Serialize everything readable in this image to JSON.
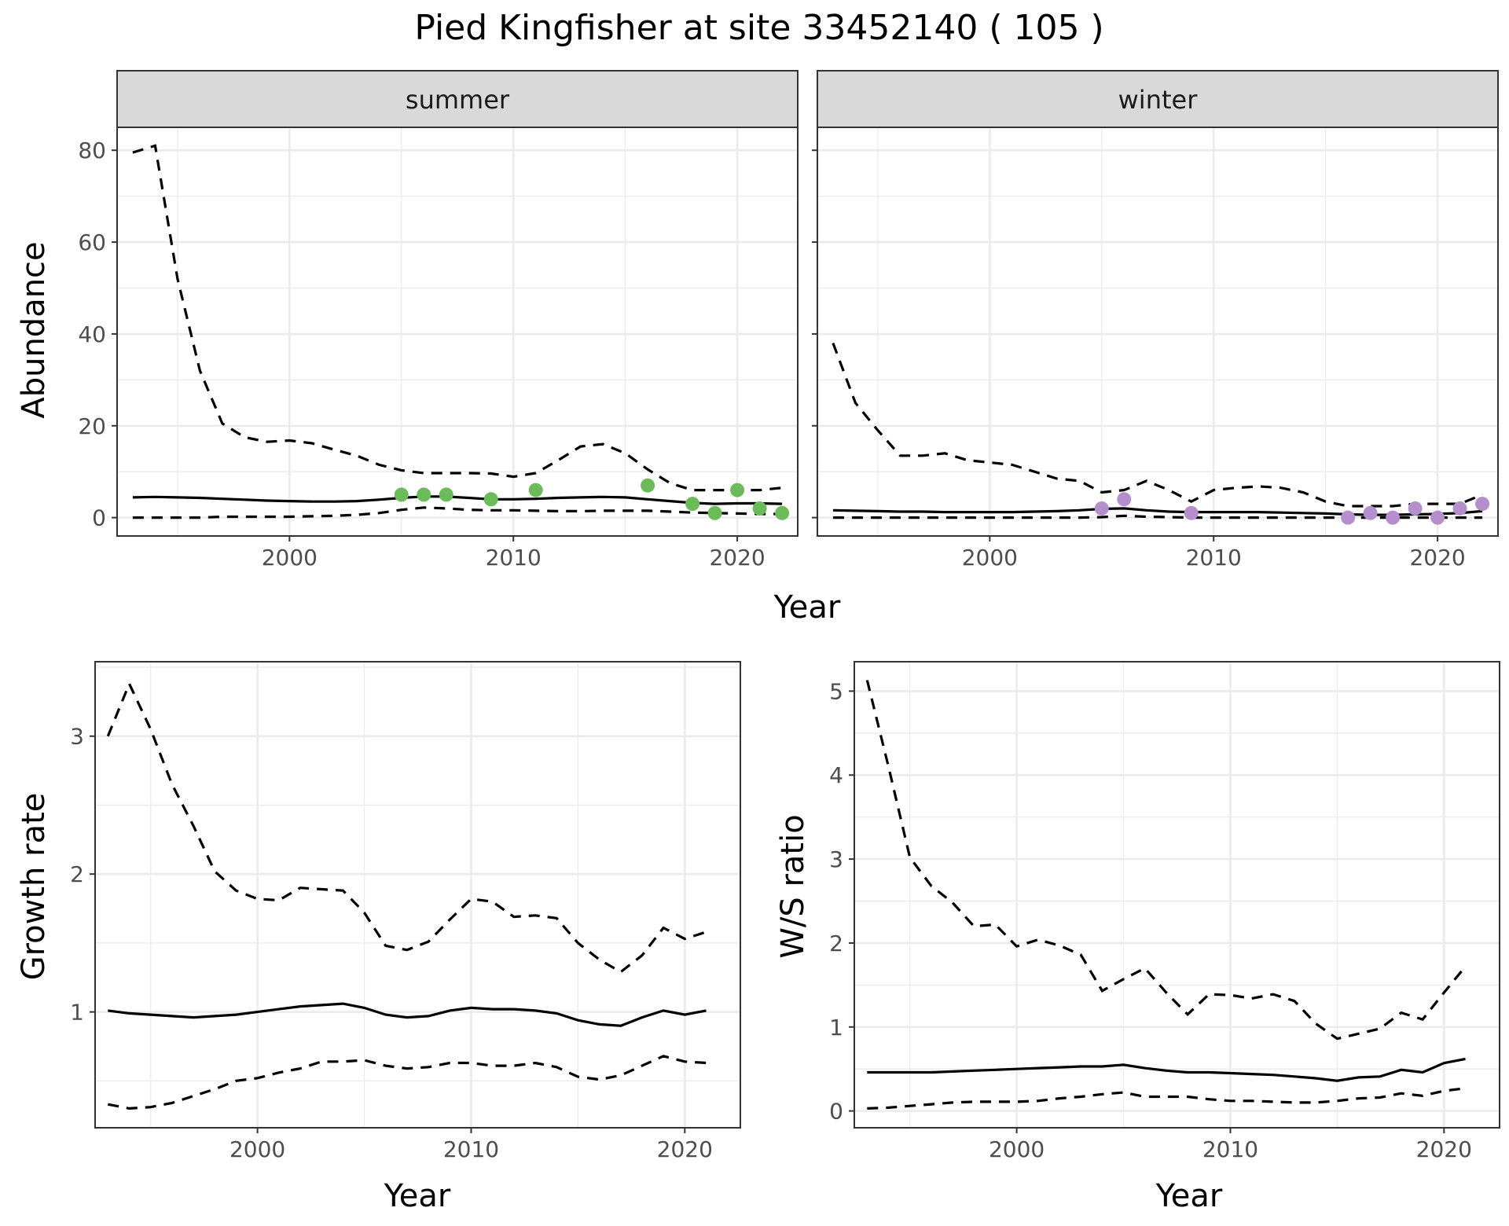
{
  "title": "Pied Kingfisher at site 33452140 ( 105 )",
  "colors": {
    "summer_points": "#6cbb5a",
    "winter_points": "#b48fcb"
  },
  "chart_data": [
    {
      "type": "line",
      "panel": "summer",
      "strip_label": "summer",
      "xlabel": "Year",
      "ylabel": "Abundance",
      "xlim": [
        1992.3,
        2022.7
      ],
      "ylim": [
        -4,
        85
      ],
      "x_ticks": [
        2000,
        2010,
        2020
      ],
      "y_ticks": [
        0,
        20,
        40,
        60,
        80
      ],
      "series": [
        {
          "role": "mean",
          "style": "solid",
          "x": [
            1993,
            1994,
            1995,
            1996,
            1997,
            1998,
            1999,
            2000,
            2001,
            2002,
            2003,
            2004,
            2005,
            2006,
            2007,
            2008,
            2009,
            2010,
            2011,
            2012,
            2013,
            2014,
            2015,
            2016,
            2017,
            2018,
            2019,
            2020,
            2021,
            2022
          ],
          "y": [
            4.4,
            4.5,
            4.4,
            4.3,
            4.1,
            3.9,
            3.7,
            3.6,
            3.5,
            3.5,
            3.6,
            3.9,
            4.3,
            4.6,
            4.6,
            4.3,
            4.0,
            4.0,
            4.1,
            4.3,
            4.4,
            4.5,
            4.4,
            4.0,
            3.6,
            3.2,
            3.0,
            3.1,
            3.1,
            3.0
          ]
        },
        {
          "role": "upper",
          "style": "dashed",
          "x": [
            1993,
            1994,
            1995,
            1996,
            1997,
            1998,
            1999,
            2000,
            2001,
            2002,
            2003,
            2004,
            2005,
            2006,
            2007,
            2008,
            2009,
            2010,
            2011,
            2012,
            2013,
            2014,
            2015,
            2016,
            2017,
            2018,
            2019,
            2020,
            2021,
            2022
          ],
          "y": [
            79.5,
            81,
            52,
            32,
            20.5,
            17.5,
            16.5,
            16.8,
            16.2,
            14.8,
            13.5,
            11.5,
            10.3,
            9.7,
            9.7,
            9.7,
            9.6,
            8.9,
            9.7,
            12.5,
            15.5,
            16,
            14,
            10.5,
            7.5,
            6,
            6,
            6,
            6,
            6.5
          ]
        },
        {
          "role": "lower",
          "style": "dashed",
          "x": [
            1993,
            1994,
            1995,
            1996,
            1997,
            1998,
            1999,
            2000,
            2001,
            2002,
            2003,
            2004,
            2005,
            2006,
            2007,
            2008,
            2009,
            2010,
            2011,
            2012,
            2013,
            2014,
            2015,
            2016,
            2017,
            2018,
            2019,
            2020,
            2021,
            2022
          ],
          "y": [
            0,
            0,
            0,
            0,
            0.2,
            0.2,
            0.2,
            0.2,
            0.3,
            0.4,
            0.6,
            1.0,
            1.7,
            2.2,
            2.0,
            1.7,
            1.6,
            1.6,
            1.5,
            1.4,
            1.4,
            1.5,
            1.5,
            1.5,
            1.3,
            1.1,
            1.0,
            0.9,
            0.8,
            0.8
          ]
        }
      ],
      "points": {
        "x": [
          2005,
          2006,
          2007,
          2009,
          2011,
          2016,
          2018,
          2019,
          2020,
          2021,
          2022
        ],
        "y": [
          5,
          5,
          5,
          4,
          6,
          7,
          3,
          1,
          6,
          2,
          1
        ]
      }
    },
    {
      "type": "line",
      "panel": "winter",
      "strip_label": "winter",
      "xlabel": "Year",
      "ylabel": "Abundance",
      "xlim": [
        1992.3,
        2022.7
      ],
      "ylim": [
        -4,
        85
      ],
      "x_ticks": [
        2000,
        2010,
        2020
      ],
      "y_ticks": [
        0,
        20,
        40,
        60,
        80
      ],
      "series": [
        {
          "role": "mean",
          "style": "solid",
          "x": [
            1993,
            1994,
            1995,
            1996,
            1997,
            1998,
            1999,
            2000,
            2001,
            2002,
            2003,
            2004,
            2005,
            2006,
            2007,
            2008,
            2009,
            2010,
            2011,
            2012,
            2013,
            2014,
            2015,
            2016,
            2017,
            2018,
            2019,
            2020,
            2021,
            2022
          ],
          "y": [
            1.6,
            1.5,
            1.4,
            1.3,
            1.3,
            1.2,
            1.2,
            1.2,
            1.2,
            1.3,
            1.4,
            1.6,
            1.9,
            2.0,
            1.6,
            1.3,
            1.2,
            1.2,
            1.2,
            1.2,
            1.1,
            1.0,
            0.9,
            0.7,
            0.6,
            0.6,
            0.7,
            0.8,
            1.0,
            1.4
          ]
        },
        {
          "role": "upper",
          "style": "dashed",
          "x": [
            1993,
            1994,
            1995,
            1996,
            1997,
            1998,
            1999,
            2000,
            2001,
            2002,
            2003,
            2004,
            2005,
            2006,
            2007,
            2008,
            2009,
            2010,
            2011,
            2012,
            2013,
            2014,
            2015,
            2016,
            2017,
            2018,
            2019,
            2020,
            2021,
            2022
          ],
          "y": [
            38,
            25,
            19,
            13.5,
            13.5,
            14,
            12.5,
            12,
            11.5,
            10,
            8.5,
            8,
            5.5,
            6,
            8,
            6,
            3.5,
            6,
            6.5,
            6.8,
            6.5,
            5.5,
            3.5,
            2.5,
            2.5,
            2.5,
            3,
            3,
            3,
            5
          ]
        },
        {
          "role": "lower",
          "style": "dashed",
          "x": [
            1993,
            1994,
            1995,
            1996,
            1997,
            1998,
            1999,
            2000,
            2001,
            2002,
            2003,
            2004,
            2005,
            2006,
            2007,
            2008,
            2009,
            2010,
            2011,
            2012,
            2013,
            2014,
            2015,
            2016,
            2017,
            2018,
            2019,
            2020,
            2021,
            2022
          ],
          "y": [
            0,
            0,
            0,
            0,
            0,
            0,
            0,
            0,
            0,
            0,
            0,
            0,
            0.1,
            0.4,
            0.2,
            0.1,
            0,
            0,
            0,
            0,
            0,
            0,
            0,
            0,
            0,
            0,
            0,
            0,
            0,
            0
          ]
        }
      ],
      "points": {
        "x": [
          2005,
          2006,
          2009,
          2016,
          2017,
          2018,
          2019,
          2020,
          2021,
          2022
        ],
        "y": [
          2,
          4,
          1,
          0,
          1,
          0,
          2,
          0,
          2,
          3
        ]
      }
    },
    {
      "type": "line",
      "panel": "growth",
      "xlabel": "Year",
      "ylabel": "Growth rate",
      "xlim": [
        1992.4,
        2022.6
      ],
      "ylim": [
        0.16,
        3.54
      ],
      "x_ticks": [
        2000,
        2010,
        2020
      ],
      "y_ticks": [
        1,
        2,
        3
      ],
      "series": [
        {
          "role": "mean",
          "style": "solid",
          "x": [
            1993,
            1994,
            1995,
            1996,
            1997,
            1998,
            1999,
            2000,
            2001,
            2002,
            2003,
            2004,
            2005,
            2006,
            2007,
            2008,
            2009,
            2010,
            2011,
            2012,
            2013,
            2014,
            2015,
            2016,
            2017,
            2018,
            2019,
            2020,
            2021
          ],
          "y": [
            1.01,
            0.99,
            0.98,
            0.97,
            0.96,
            0.97,
            0.98,
            1.0,
            1.02,
            1.04,
            1.05,
            1.06,
            1.03,
            0.98,
            0.96,
            0.97,
            1.01,
            1.03,
            1.02,
            1.02,
            1.01,
            0.99,
            0.94,
            0.91,
            0.9,
            0.96,
            1.01,
            0.98,
            1.01
          ]
        },
        {
          "role": "upper",
          "style": "dashed",
          "x": [
            1993,
            1994,
            1995,
            1996,
            1997,
            1998,
            1999,
            2000,
            2001,
            2002,
            2003,
            2004,
            2005,
            2006,
            2007,
            2008,
            2009,
            2010,
            2011,
            2012,
            2013,
            2014,
            2015,
            2016,
            2017,
            2018,
            2019,
            2020,
            2021
          ],
          "y": [
            3.0,
            3.38,
            3.05,
            2.65,
            2.35,
            2.02,
            1.88,
            1.82,
            1.81,
            1.9,
            1.89,
            1.88,
            1.72,
            1.48,
            1.45,
            1.51,
            1.67,
            1.82,
            1.8,
            1.69,
            1.7,
            1.68,
            1.5,
            1.38,
            1.29,
            1.41,
            1.61,
            1.53,
            1.58
          ]
        },
        {
          "role": "lower",
          "style": "dashed",
          "x": [
            1993,
            1994,
            1995,
            1996,
            1997,
            1998,
            1999,
            2000,
            2001,
            2002,
            2003,
            2004,
            2005,
            2006,
            2007,
            2008,
            2009,
            2010,
            2011,
            2012,
            2013,
            2014,
            2015,
            2016,
            2017,
            2018,
            2019,
            2020,
            2021
          ],
          "y": [
            0.33,
            0.3,
            0.31,
            0.34,
            0.39,
            0.44,
            0.5,
            0.52,
            0.56,
            0.59,
            0.64,
            0.64,
            0.65,
            0.61,
            0.59,
            0.6,
            0.63,
            0.63,
            0.61,
            0.61,
            0.63,
            0.6,
            0.53,
            0.51,
            0.54,
            0.61,
            0.68,
            0.64,
            0.63
          ]
        }
      ]
    },
    {
      "type": "line",
      "panel": "ws_ratio",
      "xlabel": "Year",
      "ylabel": "W/S ratio",
      "xlim": [
        1992.4,
        2022.6
      ],
      "ylim": [
        -0.2,
        5.35
      ],
      "x_ticks": [
        2000,
        2010,
        2020
      ],
      "y_ticks": [
        0,
        1,
        2,
        3,
        4,
        5
      ],
      "series": [
        {
          "role": "mean",
          "style": "solid",
          "x": [
            1993,
            1994,
            1995,
            1996,
            1997,
            1998,
            1999,
            2000,
            2001,
            2002,
            2003,
            2004,
            2005,
            2006,
            2007,
            2008,
            2009,
            2010,
            2011,
            2012,
            2013,
            2014,
            2015,
            2016,
            2017,
            2018,
            2019,
            2020,
            2021
          ],
          "y": [
            0.46,
            0.46,
            0.46,
            0.46,
            0.47,
            0.48,
            0.49,
            0.5,
            0.51,
            0.52,
            0.53,
            0.53,
            0.55,
            0.51,
            0.48,
            0.46,
            0.46,
            0.45,
            0.44,
            0.43,
            0.41,
            0.39,
            0.36,
            0.4,
            0.41,
            0.49,
            0.46,
            0.57,
            0.62
          ]
        },
        {
          "role": "upper",
          "style": "dashed",
          "x": [
            1993,
            1994,
            1995,
            1996,
            1997,
            1998,
            1999,
            2000,
            2001,
            2002,
            2003,
            2004,
            2005,
            2006,
            2007,
            2008,
            2009,
            2010,
            2011,
            2012,
            2013,
            2014,
            2015,
            2016,
            2017,
            2018,
            2019,
            2020,
            2021
          ],
          "y": [
            5.13,
            4.1,
            3.02,
            2.68,
            2.48,
            2.2,
            2.22,
            1.96,
            2.04,
            1.97,
            1.86,
            1.43,
            1.57,
            1.7,
            1.41,
            1.15,
            1.39,
            1.38,
            1.34,
            1.39,
            1.31,
            1.04,
            0.86,
            0.92,
            0.98,
            1.17,
            1.09,
            1.41,
            1.72
          ]
        },
        {
          "role": "lower",
          "style": "dashed",
          "x": [
            1993,
            1994,
            1995,
            1996,
            1997,
            1998,
            1999,
            2000,
            2001,
            2002,
            2003,
            2004,
            2005,
            2006,
            2007,
            2008,
            2009,
            2010,
            2011,
            2012,
            2013,
            2014,
            2015,
            2016,
            2017,
            2018,
            2019,
            2020,
            2021
          ],
          "y": [
            0.03,
            0.04,
            0.06,
            0.08,
            0.1,
            0.11,
            0.11,
            0.11,
            0.12,
            0.15,
            0.17,
            0.2,
            0.22,
            0.17,
            0.17,
            0.17,
            0.14,
            0.12,
            0.12,
            0.11,
            0.1,
            0.1,
            0.12,
            0.15,
            0.16,
            0.21,
            0.18,
            0.24,
            0.27
          ]
        }
      ]
    }
  ]
}
